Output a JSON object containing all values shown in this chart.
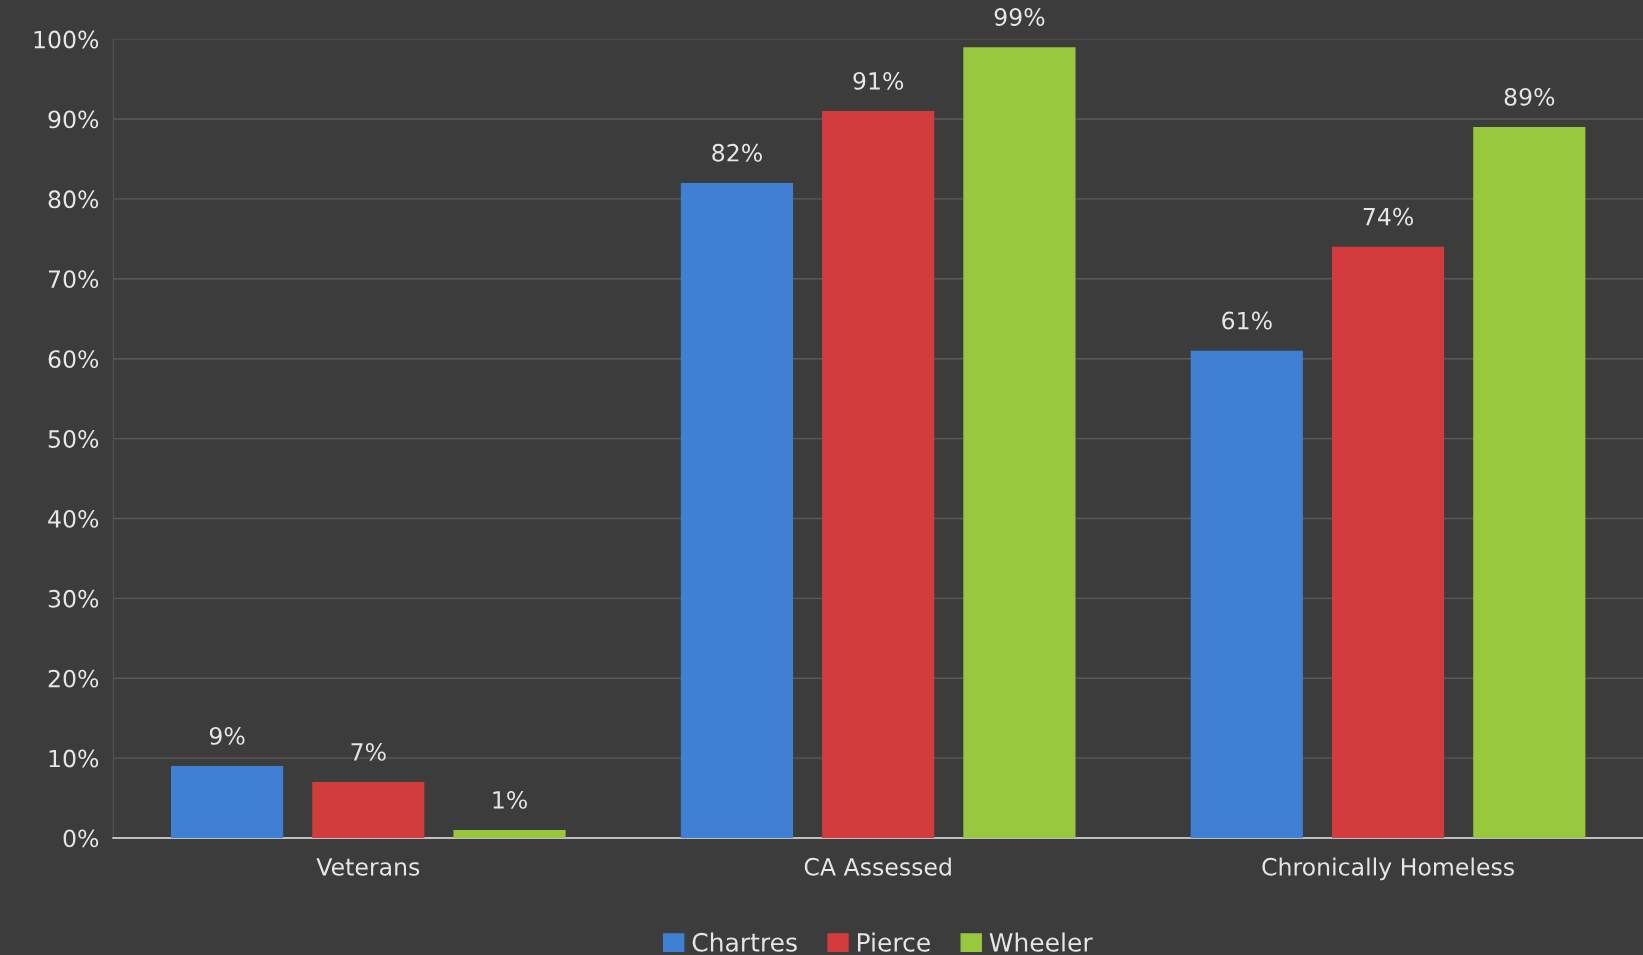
{
  "chart_data": {
    "type": "bar",
    "categories": [
      "Veterans",
      "CA Assessed",
      "Chronically Homeless"
    ],
    "series": [
      {
        "name": "Chartres",
        "color": "#3f7fd4",
        "values": [
          9,
          82,
          61
        ],
        "value_labels": [
          "9%",
          "82%",
          "61%"
        ]
      },
      {
        "name": "Pierce",
        "color": "#d33c3c",
        "values": [
          7,
          91,
          74
        ],
        "value_labels": [
          "7%",
          "91%",
          "74%"
        ]
      },
      {
        "name": "Wheeler",
        "color": "#98c83e",
        "values": [
          1,
          99,
          89
        ],
        "value_labels": [
          "1%",
          "99%",
          "89%"
        ]
      }
    ],
    "ylim": [
      0,
      100
    ],
    "yticks": [
      {
        "value": 0,
        "label": "0%"
      },
      {
        "value": 10,
        "label": "10%"
      },
      {
        "value": 20,
        "label": "20%"
      },
      {
        "value": 30,
        "label": "30%"
      },
      {
        "value": 40,
        "label": "40%"
      },
      {
        "value": 50,
        "label": "50%"
      },
      {
        "value": 60,
        "label": "60%"
      },
      {
        "value": 70,
        "label": "70%"
      },
      {
        "value": 80,
        "label": "80%"
      },
      {
        "value": 90,
        "label": "90%"
      },
      {
        "value": 100,
        "label": "100%"
      }
    ],
    "grid": "y",
    "legend": "bottom"
  }
}
